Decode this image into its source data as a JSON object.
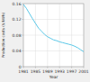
{
  "chart_data": {
    "type": "line",
    "x": [
      1981,
      1982,
      1983,
      1984,
      1985,
      1986,
      1987,
      1988,
      1989,
      1990,
      1991,
      1992,
      1993,
      1994,
      1995,
      1996,
      1997,
      1998,
      1999,
      2000,
      2001
    ],
    "values": [
      0.158,
      0.148,
      0.135,
      0.122,
      0.11,
      0.098,
      0.09,
      0.082,
      0.076,
      0.072,
      0.068,
      0.066,
      0.063,
      0.061,
      0.059,
      0.057,
      0.055,
      0.052,
      0.048,
      0.043,
      0.038
    ],
    "color": "#5bc8e8",
    "xlabel": "Year",
    "ylabel": "Production costs ($/kWh)",
    "xlim": [
      1981,
      2001
    ],
    "ylim": [
      0,
      0.16
    ],
    "xticks": [
      1981,
      1985,
      1989,
      1993,
      1997,
      2001
    ],
    "yticks": [
      0,
      0.04,
      0.08,
      0.12,
      0.16
    ],
    "grid": true
  }
}
